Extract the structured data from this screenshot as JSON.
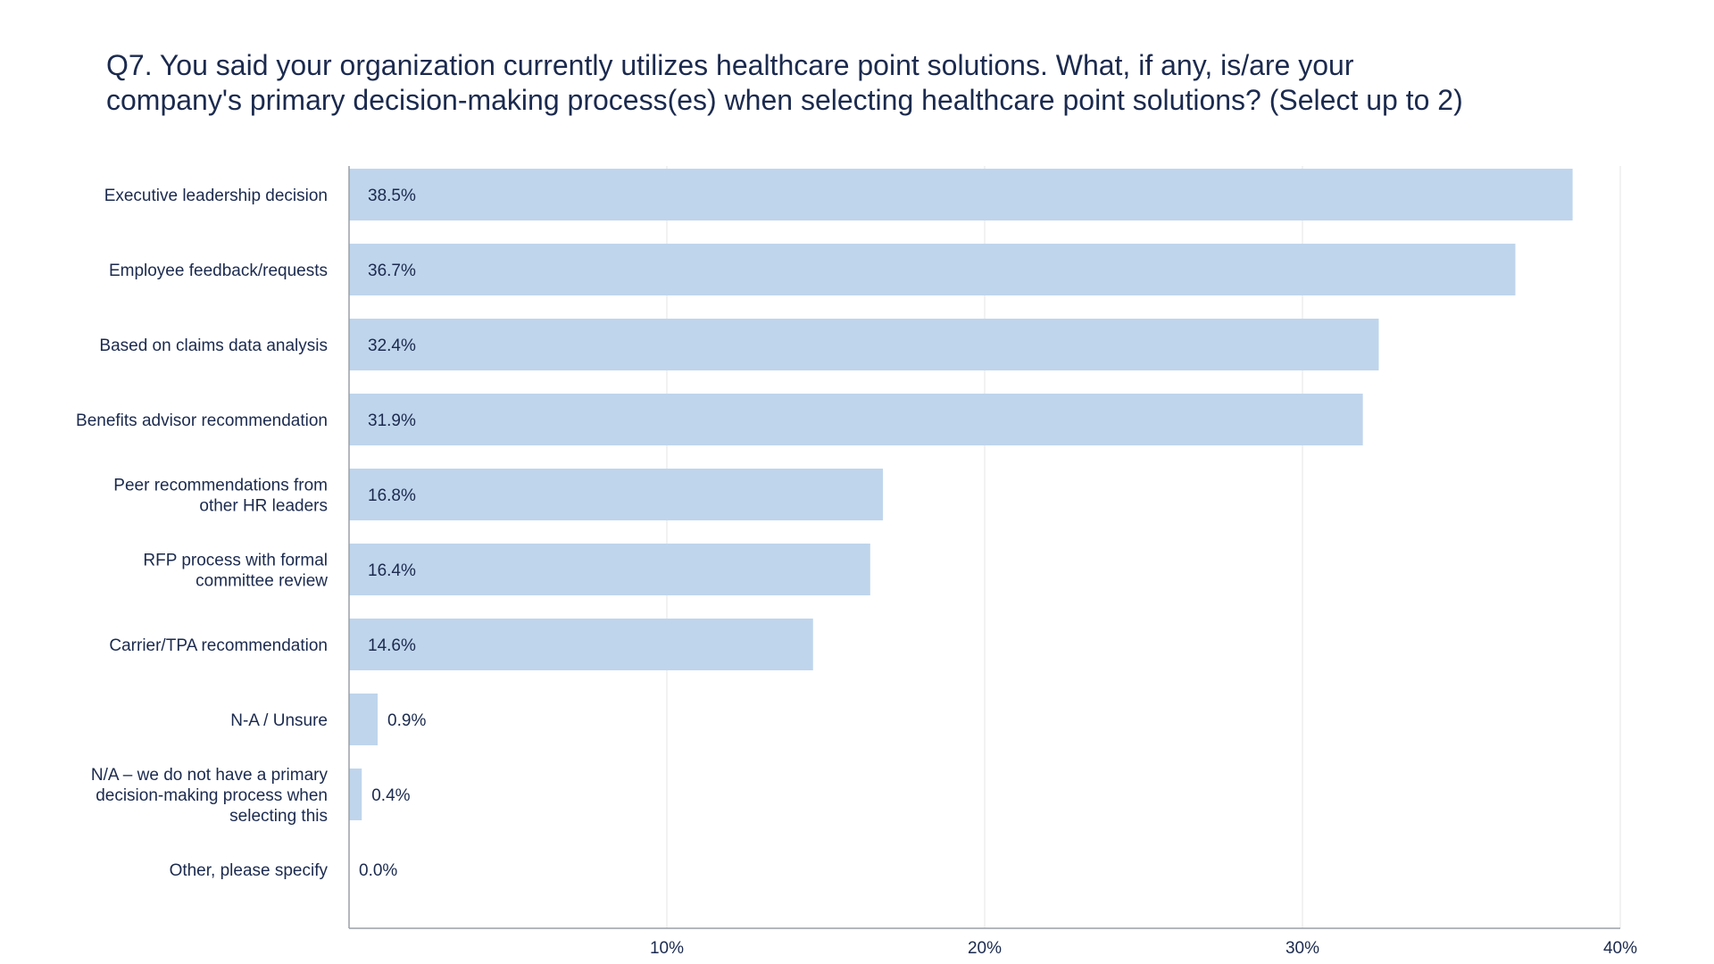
{
  "title": {
    "line1": "Q7. You said your organization currently utilizes healthcare point solutions. What, if any, is/are your",
    "line2": "company's primary decision-making process(es) when selecting healthcare point solutions? (Select up to 2)"
  },
  "colors": {
    "bar": "#bfd5ec",
    "text": "#1b2a4e",
    "grid": "#e6e6e6",
    "axis": "#9aa0a8"
  },
  "chart_data": {
    "type": "bar",
    "orientation": "horizontal",
    "title": "Q7. You said your organization currently utilizes healthcare point solutions. What, if any, is/are your company's primary decision-making process(es) when selecting healthcare point solutions? (Select up to 2)",
    "categories": [
      [
        "Executive leadership decision"
      ],
      [
        "Employee feedback/requests"
      ],
      [
        "Based on claims data analysis"
      ],
      [
        "Benefits advisor recommendation"
      ],
      [
        "Peer recommendations from",
        "other HR leaders"
      ],
      [
        "RFP process with formal",
        "committee review"
      ],
      [
        "Carrier/TPA recommendation"
      ],
      [
        "N-A / Unsure"
      ],
      [
        "N/A – we do not have a primary",
        "decision-making process when",
        "selecting this"
      ],
      [
        "Other, please specify"
      ]
    ],
    "values": [
      38.5,
      36.7,
      32.4,
      31.9,
      16.8,
      16.4,
      14.6,
      0.9,
      0.4,
      0.0
    ],
    "value_labels": [
      "38.5%",
      "36.7%",
      "32.4%",
      "31.9%",
      "16.8%",
      "16.4%",
      "14.6%",
      "0.9%",
      "0.4%",
      "0.0%"
    ],
    "xlim": [
      0,
      40
    ],
    "xticks": [
      10,
      20,
      30,
      40
    ],
    "xtick_labels": [
      "10%",
      "20%",
      "30%",
      "40%"
    ],
    "grid": true,
    "legend": "none"
  }
}
